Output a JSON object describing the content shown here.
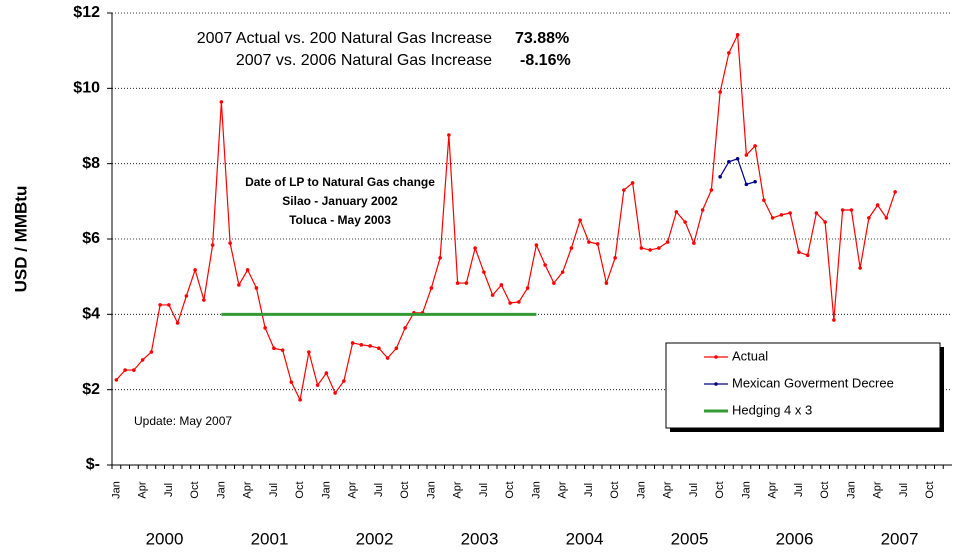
{
  "chart_data": {
    "type": "line",
    "y_label": "USD / MMBtu",
    "annotations": {
      "stats": [
        {
          "label": "2007 Actual vs. 200 Natural Gas Increase",
          "value": "73.88%"
        },
        {
          "label": "2007 vs. 2006 Natural Gas Increase",
          "value": "-8.16%"
        }
      ],
      "note": [
        "Date of LP to Natural Gas change",
        "Silao - January 2002",
        "Toluca - May 2003"
      ],
      "update": "Update: May 2007"
    },
    "categories": [
      "Jan",
      null,
      null,
      "Apr",
      null,
      null,
      "Jul",
      null,
      null,
      "Oct",
      null,
      null,
      "Jan",
      null,
      null,
      "Apr",
      null,
      null,
      "Jul",
      null,
      null,
      "Oct",
      null,
      null,
      "Jan",
      null,
      null,
      "Apr",
      null,
      null,
      "Jul",
      null,
      null,
      "Oct",
      null,
      null,
      "Jan",
      null,
      null,
      "Apr",
      null,
      null,
      "Jul",
      null,
      null,
      "Oct",
      null,
      null,
      "Jan",
      null,
      null,
      "Apr",
      null,
      null,
      "Jul",
      null,
      null,
      "Oct",
      null,
      null,
      "Jan",
      null,
      null,
      "Apr",
      null,
      null,
      "Jul",
      null,
      null,
      "Oct",
      null,
      null,
      "Jan",
      null,
      null,
      "Apr",
      null,
      null,
      "Jul",
      null,
      null,
      "Oct",
      null,
      null,
      "Jan",
      null,
      null,
      "Apr",
      null,
      null,
      "Jul",
      null,
      null,
      "Oct",
      null,
      null
    ],
    "years": [
      "2000",
      "2001",
      "2002",
      "2003",
      "2004",
      "2005",
      "2006",
      "2007"
    ],
    "series": [
      {
        "name": "Actual",
        "color": "#ff0000",
        "markers": true,
        "values": [
          2.26,
          2.52,
          2.52,
          2.79,
          3.0,
          4.25,
          4.25,
          3.77,
          4.49,
          5.18,
          4.38,
          5.84,
          9.64,
          5.89,
          4.78,
          5.18,
          4.7,
          3.64,
          3.1,
          3.05,
          2.2,
          1.73,
          3.0,
          2.12,
          2.44,
          1.91,
          2.23,
          3.24,
          3.19,
          3.16,
          3.1,
          2.84,
          3.1,
          3.64,
          4.04,
          4.04,
          4.7,
          5.5,
          8.76,
          4.83,
          4.83,
          5.76,
          5.12,
          4.51,
          4.78,
          4.3,
          4.33,
          4.7,
          5.84,
          5.31,
          4.83,
          5.12,
          5.76,
          6.5,
          5.92,
          5.87,
          4.83,
          5.5,
          7.3,
          7.49,
          5.76,
          5.71,
          5.76,
          5.92,
          6.72,
          6.45,
          5.89,
          6.77,
          7.3,
          9.9,
          10.94,
          11.42,
          8.23,
          8.47,
          7.03,
          6.56,
          6.64,
          6.69,
          5.65,
          5.57,
          6.69,
          6.45,
          3.85,
          6.77,
          6.77,
          5.23,
          6.56,
          6.9,
          6.56,
          7.25,
          null,
          null,
          null,
          null,
          null,
          null
        ]
      },
      {
        "name": "Mexican Goverment Decree",
        "color": "#00008b",
        "markers": true,
        "values": [
          null,
          null,
          null,
          null,
          null,
          null,
          null,
          null,
          null,
          null,
          null,
          null,
          null,
          null,
          null,
          null,
          null,
          null,
          null,
          null,
          null,
          null,
          null,
          null,
          null,
          null,
          null,
          null,
          null,
          null,
          null,
          null,
          null,
          null,
          null,
          null,
          null,
          null,
          null,
          null,
          null,
          null,
          null,
          null,
          null,
          null,
          null,
          null,
          null,
          null,
          null,
          null,
          null,
          null,
          null,
          null,
          null,
          null,
          null,
          null,
          null,
          null,
          null,
          null,
          null,
          null,
          null,
          null,
          null,
          7.65,
          8.05,
          8.13,
          7.45,
          7.52,
          null,
          null,
          null,
          null,
          null,
          null,
          null,
          null,
          null,
          null,
          null,
          null,
          null,
          null,
          null,
          null,
          null,
          null,
          null,
          null,
          null,
          null
        ]
      },
      {
        "name": "Hedging 4 x 3",
        "color": "#339933",
        "markers": false,
        "values": [
          null,
          null,
          null,
          null,
          null,
          null,
          null,
          null,
          null,
          null,
          null,
          null,
          4,
          4,
          4,
          4,
          4,
          4,
          4,
          4,
          4,
          4,
          4,
          4,
          4,
          4,
          4,
          4,
          4,
          4,
          4,
          4,
          4,
          4,
          4,
          4,
          4,
          4,
          4,
          4,
          4,
          4,
          4,
          4,
          4,
          4,
          4,
          4,
          4,
          null,
          null,
          null,
          null,
          null,
          null,
          null,
          null,
          null,
          null,
          null,
          null,
          null,
          null,
          null,
          null,
          null,
          null,
          null,
          null,
          null,
          null,
          null,
          null,
          null,
          null,
          null,
          null,
          null,
          null,
          null,
          null,
          null,
          null,
          null,
          null,
          null,
          null,
          null,
          null,
          null,
          null,
          null,
          null,
          null,
          null,
          null
        ]
      }
    ],
    "ylim": [
      0,
      12
    ],
    "yticks": [
      {
        "value": 0,
        "label": "$-"
      },
      {
        "value": 2,
        "label": "$2"
      },
      {
        "value": 4,
        "label": "$4"
      },
      {
        "value": 6,
        "label": "$6"
      },
      {
        "value": 8,
        "label": "$8"
      },
      {
        "value": 10,
        "label": "$10"
      },
      {
        "value": 12,
        "label": "$12"
      }
    ],
    "grid": true,
    "legend": "lower-right"
  }
}
